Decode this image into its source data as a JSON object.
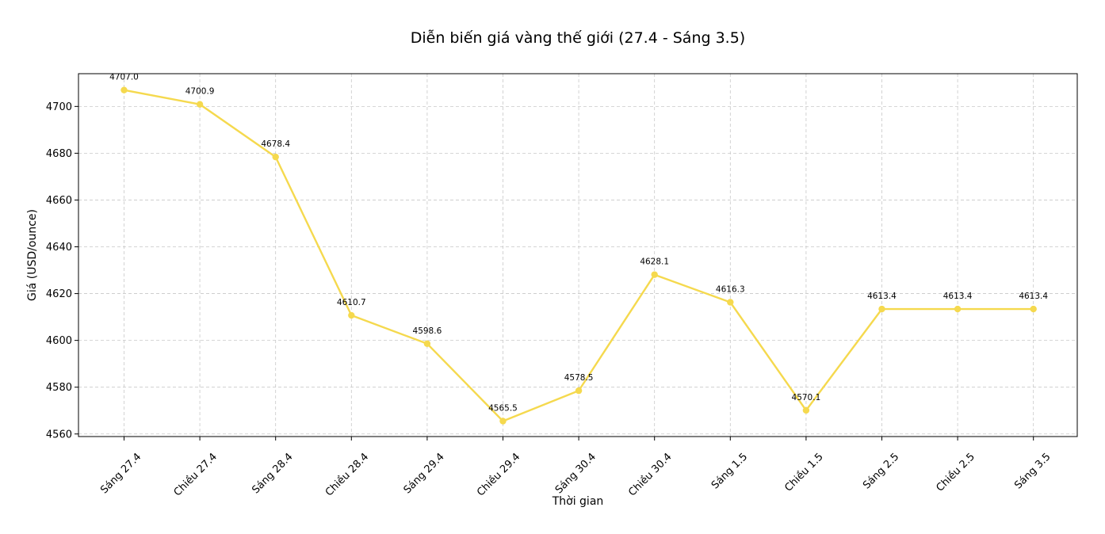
{
  "chart_data": {
    "type": "line",
    "title": "Diễn biến giá vàng thế giới (27.4 - Sáng 3.5)",
    "xlabel": "Thời gian",
    "ylabel": "Giá (USD/ounce)",
    "categories": [
      "Sáng 27.4",
      "Chiều 27.4",
      "Sáng 28.4",
      "Chiều 28.4",
      "Sáng 29.4",
      "Chiều 29.4",
      "Sáng 30.4",
      "Chiều 30.4",
      "Sáng 1.5",
      "Chiều 1.5",
      "Sáng 2.5",
      "Chiều 2.5",
      "Sáng 3.5"
    ],
    "series": [
      {
        "values": [
          4707.0,
          4700.9,
          4678.4,
          4610.7,
          4598.6,
          4565.5,
          4578.5,
          4628.1,
          4616.3,
          4570.1,
          4613.4,
          4613.4,
          4613.4
        ]
      }
    ],
    "data_labels": [
      "4707.0",
      "4700.9",
      "4678.4",
      "4610.7",
      "4598.6",
      "4565.5",
      "4578.5",
      "4628.1",
      "4616.3",
      "4570.1",
      "4613.4",
      "4613.4",
      "4613.4"
    ],
    "y_ticks": [
      4560,
      4580,
      4600,
      4620,
      4640,
      4660,
      4680,
      4700
    ],
    "ylim": [
      4558.9,
      4714.0
    ],
    "grid": true,
    "line_color": "#f5d94e"
  }
}
